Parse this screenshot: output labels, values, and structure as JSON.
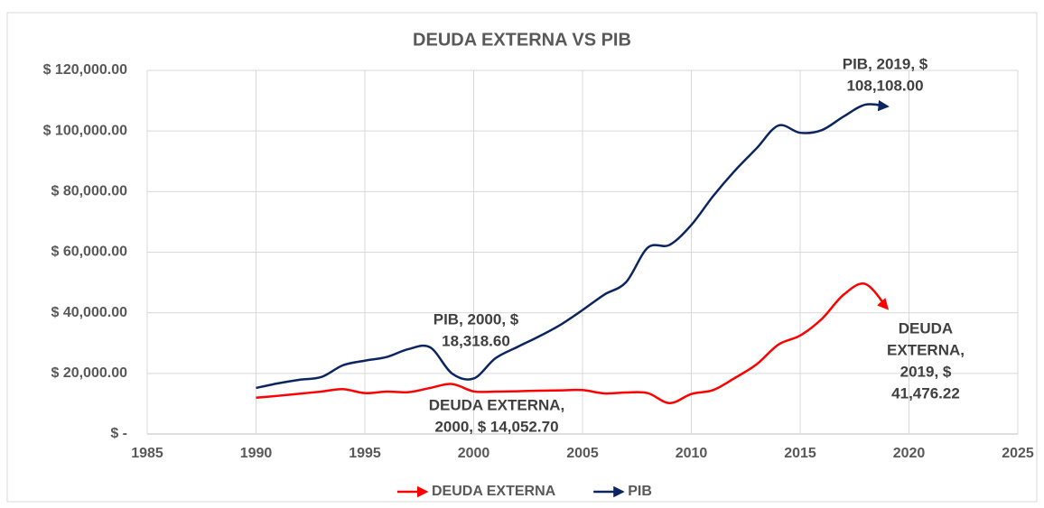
{
  "chart_data": {
    "type": "line",
    "title": "DEUDA EXTERNA VS PIB",
    "x": [
      1990,
      1991,
      1992,
      1993,
      1994,
      1995,
      1996,
      1997,
      1998,
      1999,
      2000,
      2001,
      2002,
      2003,
      2004,
      2005,
      2006,
      2007,
      2008,
      2009,
      2010,
      2011,
      2012,
      2013,
      2014,
      2015,
      2016,
      2017,
      2018,
      2019
    ],
    "series": [
      {
        "name": "DEUDA EXTERNA",
        "color": "#ff0000",
        "values": [
          12000,
          12600,
          13300,
          14000,
          14800,
          13500,
          14000,
          13800,
          15200,
          16500,
          14052.7,
          14000,
          14100,
          14300,
          14400,
          14500,
          13400,
          13700,
          13500,
          10200,
          13200,
          14500,
          18500,
          23000,
          29500,
          32500,
          38000,
          46000,
          49500,
          41476.22
        ]
      },
      {
        "name": "PIB",
        "color": "#0b2560",
        "values": [
          15200,
          16700,
          17900,
          18800,
          22700,
          24200,
          25400,
          28000,
          28600,
          20000,
          18318.6,
          25000,
          28700,
          32200,
          36100,
          40900,
          46000,
          50100,
          61500,
          62400,
          69000,
          78500,
          86900,
          94300,
          101800,
          99400,
          100300,
          104800,
          108700,
          108108
        ]
      }
    ],
    "xlim": [
      1985,
      2025
    ],
    "xticks": [
      1985,
      1990,
      1995,
      2000,
      2005,
      2010,
      2015,
      2020,
      2025
    ],
    "ylim": [
      0,
      120000
    ],
    "yticks": [
      {
        "value": 0,
        "label": "$ -"
      },
      {
        "value": 20000,
        "label": "$ 20,000.00"
      },
      {
        "value": 40000,
        "label": "$ 40,000.00"
      },
      {
        "value": 60000,
        "label": "$ 60,000.00"
      },
      {
        "value": 80000,
        "label": "$ 80,000.00"
      },
      {
        "value": 100000,
        "label": "$ 100,000.00"
      },
      {
        "value": 120000,
        "label": "$ 120,000.00"
      }
    ],
    "grid": true,
    "legend": "bottom",
    "annotations": [
      {
        "lines": [
          "PIB, 2000,  $",
          "18,318.60"
        ]
      },
      {
        "lines": [
          "PIB, 2019,  $",
          "108,108.00"
        ]
      },
      {
        "lines": [
          "DEUDA EXTERNA,",
          "2000,  $ 14,052.70"
        ]
      },
      {
        "lines": [
          "DEUDA",
          "EXTERNA,",
          "2019,  $",
          "41,476.22"
        ]
      }
    ]
  }
}
